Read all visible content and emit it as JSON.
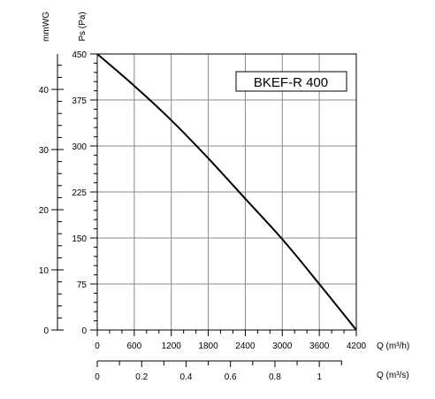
{
  "chart_data": {
    "type": "line",
    "title": "BKEF-R 400",
    "ylabel": "Ps (Pa)",
    "ylabel_secondary": "mmWG",
    "xlabel": "Q (m³/h)",
    "xlabel_secondary": "Q (m³/s)",
    "xlim": [
      0,
      4200
    ],
    "ylim": [
      0,
      450
    ],
    "x_ticks": [
      0,
      600,
      1200,
      1800,
      2400,
      3000,
      3600,
      4200
    ],
    "y_ticks": [
      0,
      75,
      150,
      225,
      300,
      375,
      450
    ],
    "y2_ticks": [
      0,
      10,
      20,
      30,
      40
    ],
    "x2_ticks": [
      0,
      0.2,
      0.4,
      0.6,
      0.8,
      1.0
    ],
    "grid": true,
    "series": [
      {
        "x": [
          0,
          600,
          1200,
          1800,
          2400,
          3000,
          3600,
          4200
        ],
        "y": [
          450,
          398,
          342,
          280,
          214,
          148,
          75,
          0
        ]
      }
    ]
  }
}
